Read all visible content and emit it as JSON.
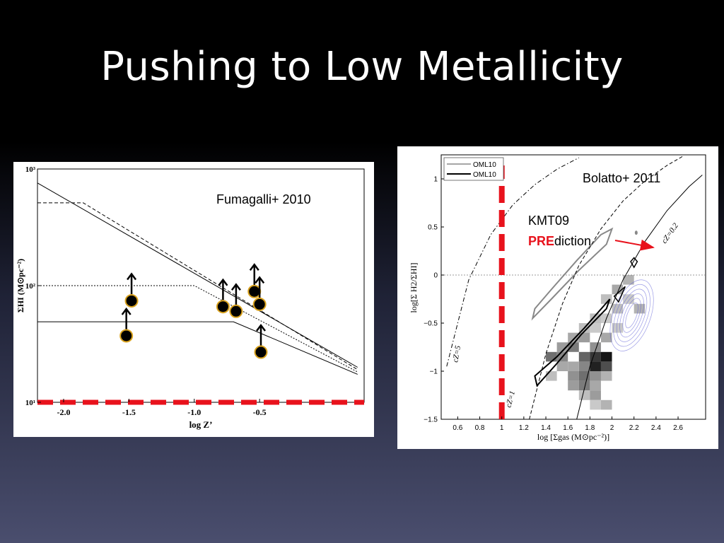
{
  "slide": {
    "title": "Pushing to Low Metallicity"
  },
  "chart_data": [
    {
      "type": "scatter",
      "annotation": "Fumagalli+ 2010",
      "xlabel": "log Z’",
      "ylabel": "ΣHI (M⊙pc⁻²)",
      "xlim": [
        -2.2,
        0.3
      ],
      "ylim": [
        1,
        3
      ],
      "ylog": true,
      "x_ticks": [
        "-2.0",
        "-1.5",
        "-1.0",
        "-0.5"
      ],
      "x_tick_values": [
        -2.0,
        -1.5,
        -1.0,
        -0.5
      ],
      "y_ticks": [
        "10¹",
        "10²",
        "10³"
      ],
      "y_tick_values": [
        1,
        2,
        3
      ],
      "lower_limits": [
        {
          "x": -1.52,
          "y": 1.57
        },
        {
          "x": -1.48,
          "y": 1.87
        },
        {
          "x": -0.78,
          "y": 1.82
        },
        {
          "x": -0.68,
          "y": 1.78
        },
        {
          "x": -0.54,
          "y": 1.95
        },
        {
          "x": -0.5,
          "y": 1.84
        },
        {
          "x": -0.49,
          "y": 1.43
        }
      ],
      "model_curves": [
        {
          "style": "solid",
          "points": [
            [
              -2.2,
              2.88
            ],
            [
              0.25,
              1.3
            ]
          ]
        },
        {
          "style": "dashed",
          "points": [
            [
              -2.2,
              2.71
            ],
            [
              -1.85,
              2.71
            ],
            [
              0.25,
              1.28
            ]
          ]
        },
        {
          "style": "dotted",
          "points": [
            [
              -2.2,
              2.0
            ],
            [
              -1.0,
              2.0
            ],
            [
              0.25,
              1.26
            ]
          ]
        },
        {
          "style": "solid",
          "points": [
            [
              -2.2,
              1.69
            ],
            [
              -0.7,
              1.69
            ],
            [
              0.25,
              1.24
            ]
          ]
        }
      ],
      "threshold_line": {
        "axis": "y",
        "value": 1.0,
        "color": "#e8121c"
      }
    },
    {
      "type": "scatter",
      "annotation": "Bolatto+ 2011",
      "xlabel": "log  [Σgas (M⊙pc⁻²)]",
      "ylabel": "log[Σ H2/ΣHI]",
      "xlim": [
        0.45,
        2.85
      ],
      "ylim": [
        -1.5,
        1.25
      ],
      "x_ticks": [
        "0.6",
        "0.8",
        "1",
        "1.2",
        "1.4",
        "1.6",
        "1.8",
        "2",
        "2.2",
        "2.4",
        "2.6"
      ],
      "x_tick_values": [
        0.6,
        0.8,
        1.0,
        1.2,
        1.4,
        1.6,
        1.8,
        2.0,
        2.2,
        2.4,
        2.6
      ],
      "y_ticks": [
        "1",
        "0.5",
        "0",
        "−0.5",
        "−1",
        "−1.5"
      ],
      "y_tick_values": [
        1,
        0.5,
        0,
        -0.5,
        -1,
        -1.5
      ],
      "legend": {
        "position": "top-left",
        "entries": [
          {
            "label": "OML10",
            "color": "#888888"
          },
          {
            "label": "OML10",
            "color": "#000000"
          }
        ]
      },
      "curve_labels": [
        {
          "text": "cZ=5"
        },
        {
          "text": "cZ=1"
        },
        {
          "text": "cZ=0.2"
        }
      ],
      "curves": [
        {
          "style": "dashdot",
          "label": "cZ=5",
          "points": [
            [
              0.5,
              -0.95
            ],
            [
              0.7,
              -0.05
            ],
            [
              0.9,
              0.42
            ],
            [
              1.1,
              0.73
            ],
            [
              1.3,
              0.94
            ],
            [
              1.5,
              1.1
            ],
            [
              1.7,
              1.22
            ]
          ]
        },
        {
          "style": "dashed",
          "label": "cZ=1",
          "points": [
            [
              1.25,
              -1.5
            ],
            [
              1.4,
              -0.82
            ],
            [
              1.55,
              -0.3
            ],
            [
              1.7,
              0.1
            ],
            [
              1.9,
              0.48
            ],
            [
              2.1,
              0.77
            ],
            [
              2.3,
              0.98
            ],
            [
              2.5,
              1.14
            ],
            [
              2.65,
              1.24
            ]
          ]
        },
        {
          "style": "solid",
          "label": "cZ=0.2",
          "points": [
            [
              1.68,
              -1.5
            ],
            [
              1.8,
              -0.95
            ],
            [
              1.95,
              -0.45
            ],
            [
              2.1,
              -0.05
            ],
            [
              2.3,
              0.35
            ],
            [
              2.5,
              0.67
            ],
            [
              2.7,
              0.92
            ],
            [
              2.82,
              1.04
            ]
          ]
        }
      ],
      "reference_line": {
        "axis": "y",
        "value": 0,
        "style": "dotted"
      },
      "threshold_line": {
        "axis": "x",
        "value": 1.0,
        "color": "#e8121c"
      },
      "annotation_text": {
        "prefix": "KMT09",
        "highlight": "PRE",
        "suffix": "diction",
        "highlight_color": "#e8121c"
      },
      "arrow_target": {
        "x": 2.35,
        "y": 0.22
      },
      "pixel_histogram": [
        {
          "x": 1.75,
          "y": -0.55,
          "v": 0.2
        },
        {
          "x": 1.85,
          "y": -0.55,
          "v": 0.15
        },
        {
          "x": 1.95,
          "y": -0.45,
          "v": 0.15
        },
        {
          "x": 1.65,
          "y": -0.65,
          "v": 0.3
        },
        {
          "x": 1.75,
          "y": -0.65,
          "v": 0.35
        },
        {
          "x": 1.85,
          "y": -0.75,
          "v": 0.4
        },
        {
          "x": 1.95,
          "y": -0.65,
          "v": 0.3
        },
        {
          "x": 1.55,
          "y": -0.75,
          "v": 0.35
        },
        {
          "x": 1.65,
          "y": -0.75,
          "v": 0.5
        },
        {
          "x": 1.45,
          "y": -0.85,
          "v": 0.55
        },
        {
          "x": 1.55,
          "y": -0.85,
          "v": 0.45
        },
        {
          "x": 1.75,
          "y": -0.85,
          "v": 0.6
        },
        {
          "x": 1.85,
          "y": -0.85,
          "v": 0.8
        },
        {
          "x": 1.95,
          "y": -0.85,
          "v": 0.95
        },
        {
          "x": 1.75,
          "y": -0.95,
          "v": 0.45
        },
        {
          "x": 1.85,
          "y": -0.95,
          "v": 0.9
        },
        {
          "x": 1.95,
          "y": -0.95,
          "v": 0.7
        },
        {
          "x": 1.55,
          "y": -0.95,
          "v": 0.3
        },
        {
          "x": 1.45,
          "y": -1.05,
          "v": 0.2
        },
        {
          "x": 1.65,
          "y": -1.05,
          "v": 0.4
        },
        {
          "x": 1.75,
          "y": -1.05,
          "v": 0.55
        },
        {
          "x": 1.85,
          "y": -1.05,
          "v": 0.4
        },
        {
          "x": 1.95,
          "y": -1.05,
          "v": 0.25
        },
        {
          "x": 1.65,
          "y": -1.15,
          "v": 0.35
        },
        {
          "x": 1.75,
          "y": -1.15,
          "v": 0.5
        },
        {
          "x": 1.85,
          "y": -1.15,
          "v": 0.3
        },
        {
          "x": 1.75,
          "y": -1.25,
          "v": 0.2
        },
        {
          "x": 1.85,
          "y": -1.25,
          "v": 0.35
        },
        {
          "x": 1.95,
          "y": -1.35,
          "v": 0.25
        },
        {
          "x": 1.85,
          "y": -1.35,
          "v": 0.15
        },
        {
          "x": 2.05,
          "y": -0.35,
          "v": 0.2
        },
        {
          "x": 2.15,
          "y": -0.25,
          "v": 0.15
        },
        {
          "x": 2.25,
          "y": -0.35,
          "v": 0.25
        },
        {
          "x": 2.05,
          "y": -0.15,
          "v": 0.3
        },
        {
          "x": 2.15,
          "y": -0.05,
          "v": 0.25
        },
        {
          "x": 1.95,
          "y": -0.25,
          "v": 0.2
        },
        {
          "x": 1.85,
          "y": -0.45,
          "v": 0.2
        },
        {
          "x": 2.05,
          "y": -0.55,
          "v": 0.15
        },
        {
          "x": 1.65,
          "y": -0.95,
          "v": 0.3
        }
      ]
    }
  ]
}
